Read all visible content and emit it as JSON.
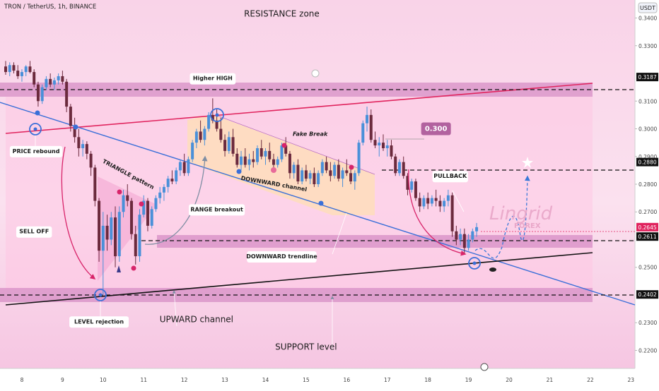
{
  "header": {
    "symbol_line": "TRON / TetherUS, 1h, BINANCE",
    "currency": "USDT"
  },
  "chart_data": {
    "type": "candlestick",
    "title": "TRON / TetherUS, 1h, BINANCE",
    "y_unit": "USDT",
    "ylim": [
      0.2135,
      0.3465
    ],
    "y_ticks": [
      "0.3400",
      "0.3300",
      "0.3100",
      "0.3000",
      "0.2900",
      "0.2800",
      "0.2700",
      "0.2500",
      "0.2300",
      "0.2200"
    ],
    "x_ticks": [
      "8",
      "9",
      "10",
      "11",
      "12",
      "13",
      "14",
      "15",
      "16",
      "17",
      "18",
      "19",
      "20",
      "21",
      "22",
      "23"
    ],
    "x_range": [
      7.6,
      23.1
    ],
    "price_tags": [
      {
        "value": 0.3187,
        "label": "0.3187",
        "style": "dark"
      },
      {
        "value": 0.288,
        "label": "0.2880",
        "style": "dark"
      },
      {
        "value": 0.2645,
        "label": "0.2645",
        "style": "pink"
      },
      {
        "value": 0.2611,
        "label": "0.2611",
        "style": "dark"
      },
      {
        "value": 0.2402,
        "label": "0.2402",
        "style": "dark"
      }
    ],
    "candles": [
      [
        7.6,
        0.3225,
        0.3245,
        0.3195,
        0.3205
      ],
      [
        7.7,
        0.3205,
        0.324,
        0.319,
        0.323
      ],
      [
        7.8,
        0.323,
        0.324,
        0.32,
        0.321
      ],
      [
        7.9,
        0.321,
        0.323,
        0.318,
        0.319
      ],
      [
        8.0,
        0.319,
        0.3215,
        0.317,
        0.3205
      ],
      [
        8.1,
        0.3205,
        0.323,
        0.319,
        0.3225
      ],
      [
        8.2,
        0.3225,
        0.3245,
        0.32,
        0.3205
      ],
      [
        8.3,
        0.3205,
        0.3215,
        0.315,
        0.316
      ],
      [
        8.4,
        0.316,
        0.317,
        0.308,
        0.31
      ],
      [
        8.5,
        0.31,
        0.316,
        0.309,
        0.315
      ],
      [
        8.6,
        0.315,
        0.319,
        0.314,
        0.318
      ],
      [
        8.7,
        0.318,
        0.32,
        0.315,
        0.316
      ],
      [
        8.8,
        0.316,
        0.3185,
        0.314,
        0.3175
      ],
      [
        8.9,
        0.3175,
        0.32,
        0.316,
        0.319
      ],
      [
        9.0,
        0.319,
        0.321,
        0.316,
        0.317
      ],
      [
        9.1,
        0.317,
        0.318,
        0.306,
        0.308
      ],
      [
        9.2,
        0.308,
        0.309,
        0.299,
        0.301
      ],
      [
        9.3,
        0.301,
        0.304,
        0.295,
        0.297
      ],
      [
        9.4,
        0.297,
        0.3,
        0.29,
        0.293
      ],
      [
        9.5,
        0.293,
        0.296,
        0.29,
        0.2945
      ],
      [
        9.6,
        0.2945,
        0.2955,
        0.289,
        0.291
      ],
      [
        9.7,
        0.291,
        0.292,
        0.283,
        0.286
      ],
      [
        9.8,
        0.286,
        0.287,
        0.272,
        0.274
      ],
      [
        9.9,
        0.274,
        0.275,
        0.252,
        0.256
      ],
      [
        10.0,
        0.256,
        0.27,
        0.24,
        0.265
      ],
      [
        10.1,
        0.265,
        0.269,
        0.256,
        0.26
      ],
      [
        10.2,
        0.26,
        0.27,
        0.258,
        0.268
      ],
      [
        10.3,
        0.268,
        0.272,
        0.25,
        0.254
      ],
      [
        10.4,
        0.254,
        0.272,
        0.252,
        0.27
      ],
      [
        10.5,
        0.27,
        0.278,
        0.268,
        0.276
      ],
      [
        10.6,
        0.276,
        0.28,
        0.272,
        0.274
      ],
      [
        10.7,
        0.274,
        0.275,
        0.26,
        0.262
      ],
      [
        10.8,
        0.262,
        0.265,
        0.251,
        0.254
      ],
      [
        10.9,
        0.254,
        0.271,
        0.252,
        0.269
      ],
      [
        11.0,
        0.269,
        0.276,
        0.268,
        0.274
      ],
      [
        11.1,
        0.274,
        0.275,
        0.263,
        0.265
      ],
      [
        11.2,
        0.265,
        0.272,
        0.264,
        0.271
      ],
      [
        11.3,
        0.271,
        0.276,
        0.27,
        0.275
      ],
      [
        11.4,
        0.275,
        0.279,
        0.273,
        0.277
      ],
      [
        11.5,
        0.277,
        0.28,
        0.274,
        0.279
      ],
      [
        11.6,
        0.279,
        0.283,
        0.277,
        0.282
      ],
      [
        11.7,
        0.282,
        0.285,
        0.28,
        0.281
      ],
      [
        11.8,
        0.281,
        0.286,
        0.28,
        0.285
      ],
      [
        11.9,
        0.285,
        0.289,
        0.283,
        0.288
      ],
      [
        12.0,
        0.288,
        0.291,
        0.283,
        0.284
      ],
      [
        12.1,
        0.284,
        0.29,
        0.283,
        0.289
      ],
      [
        12.2,
        0.289,
        0.296,
        0.288,
        0.295
      ],
      [
        12.3,
        0.295,
        0.3,
        0.293,
        0.299
      ],
      [
        12.4,
        0.299,
        0.303,
        0.295,
        0.296
      ],
      [
        12.5,
        0.296,
        0.301,
        0.294,
        0.3
      ],
      [
        12.6,
        0.3,
        0.306,
        0.299,
        0.305
      ],
      [
        12.7,
        0.305,
        0.311,
        0.302,
        0.303
      ],
      [
        12.8,
        0.303,
        0.307,
        0.299,
        0.3
      ],
      [
        12.9,
        0.3,
        0.304,
        0.295,
        0.296
      ],
      [
        13.0,
        0.296,
        0.298,
        0.29,
        0.292
      ],
      [
        13.1,
        0.292,
        0.299,
        0.291,
        0.297
      ],
      [
        13.2,
        0.297,
        0.3,
        0.29,
        0.291
      ],
      [
        13.3,
        0.291,
        0.293,
        0.286,
        0.287
      ],
      [
        13.4,
        0.287,
        0.292,
        0.285,
        0.29
      ],
      [
        13.5,
        0.29,
        0.293,
        0.286,
        0.287
      ],
      [
        13.6,
        0.287,
        0.291,
        0.285,
        0.289
      ],
      [
        13.7,
        0.289,
        0.292,
        0.286,
        0.288
      ],
      [
        13.8,
        0.288,
        0.294,
        0.287,
        0.293
      ],
      [
        13.9,
        0.293,
        0.296,
        0.289,
        0.29
      ],
      [
        14.0,
        0.29,
        0.293,
        0.287,
        0.292
      ],
      [
        14.1,
        0.292,
        0.295,
        0.288,
        0.289
      ],
      [
        14.2,
        0.289,
        0.291,
        0.285,
        0.287
      ],
      [
        14.3,
        0.287,
        0.29,
        0.286,
        0.289
      ],
      [
        14.4,
        0.289,
        0.295,
        0.288,
        0.294
      ],
      [
        14.5,
        0.294,
        0.297,
        0.29,
        0.291
      ],
      [
        14.6,
        0.291,
        0.292,
        0.282,
        0.284
      ],
      [
        14.7,
        0.284,
        0.288,
        0.282,
        0.287
      ],
      [
        14.8,
        0.287,
        0.289,
        0.28,
        0.281
      ],
      [
        14.9,
        0.281,
        0.286,
        0.28,
        0.285
      ],
      [
        15.0,
        0.285,
        0.287,
        0.281,
        0.282
      ],
      [
        15.1,
        0.282,
        0.285,
        0.28,
        0.284
      ],
      [
        15.2,
        0.284,
        0.286,
        0.279,
        0.28
      ],
      [
        15.3,
        0.28,
        0.285,
        0.279,
        0.284
      ],
      [
        15.4,
        0.284,
        0.289,
        0.283,
        0.288
      ],
      [
        15.5,
        0.288,
        0.29,
        0.284,
        0.285
      ],
      [
        15.6,
        0.285,
        0.288,
        0.281,
        0.283
      ],
      [
        15.7,
        0.283,
        0.288,
        0.282,
        0.287
      ],
      [
        15.8,
        0.287,
        0.289,
        0.281,
        0.282
      ],
      [
        15.9,
        0.282,
        0.286,
        0.279,
        0.285
      ],
      [
        16.0,
        0.285,
        0.289,
        0.283,
        0.284
      ],
      [
        16.1,
        0.284,
        0.287,
        0.28,
        0.281
      ],
      [
        16.2,
        0.281,
        0.285,
        0.278,
        0.284
      ],
      [
        16.3,
        0.284,
        0.296,
        0.283,
        0.295
      ],
      [
        16.4,
        0.295,
        0.303,
        0.294,
        0.302
      ],
      [
        16.5,
        0.302,
        0.308,
        0.299,
        0.305
      ],
      [
        16.6,
        0.305,
        0.307,
        0.295,
        0.296
      ],
      [
        16.7,
        0.296,
        0.299,
        0.293,
        0.294
      ],
      [
        16.8,
        0.294,
        0.297,
        0.29,
        0.295
      ],
      [
        16.9,
        0.295,
        0.298,
        0.292,
        0.293
      ],
      [
        17.0,
        0.293,
        0.296,
        0.29,
        0.294
      ],
      [
        17.1,
        0.294,
        0.296,
        0.289,
        0.29
      ],
      [
        17.2,
        0.29,
        0.291,
        0.283,
        0.284
      ],
      [
        17.3,
        0.284,
        0.289,
        0.283,
        0.288
      ],
      [
        17.4,
        0.288,
        0.29,
        0.282,
        0.283
      ],
      [
        17.5,
        0.283,
        0.284,
        0.276,
        0.278
      ],
      [
        17.6,
        0.278,
        0.282,
        0.277,
        0.281
      ],
      [
        17.7,
        0.281,
        0.282,
        0.274,
        0.275
      ],
      [
        17.8,
        0.275,
        0.277,
        0.27,
        0.272
      ],
      [
        17.9,
        0.272,
        0.276,
        0.271,
        0.275
      ],
      [
        18.0,
        0.275,
        0.277,
        0.271,
        0.273
      ],
      [
        18.1,
        0.273,
        0.276,
        0.272,
        0.275
      ],
      [
        18.2,
        0.275,
        0.278,
        0.272,
        0.274
      ],
      [
        18.3,
        0.274,
        0.276,
        0.27,
        0.272
      ],
      [
        18.4,
        0.272,
        0.275,
        0.27,
        0.274
      ],
      [
        18.5,
        0.274,
        0.278,
        0.272,
        0.276
      ],
      [
        18.6,
        0.276,
        0.277,
        0.261,
        0.263
      ],
      [
        18.7,
        0.263,
        0.265,
        0.258,
        0.26
      ],
      [
        18.8,
        0.26,
        0.264,
        0.258,
        0.262
      ],
      [
        18.9,
        0.262,
        0.264,
        0.255,
        0.257
      ],
      [
        19.0,
        0.257,
        0.262,
        0.256,
        0.26
      ],
      [
        19.1,
        0.26,
        0.264,
        0.259,
        0.263
      ],
      [
        19.2,
        0.263,
        0.266,
        0.261,
        0.2645
      ]
    ],
    "annotations": [
      {
        "text": "RESISTANCE zone",
        "x": 14.4,
        "y": 0.3405
      },
      {
        "text": "SUPPORT level",
        "x": 15.0,
        "y": 0.2202
      },
      {
        "text": "UPWARD channel",
        "x": 12.3,
        "y": 0.2302
      },
      {
        "text": "Higher HIGH",
        "x": 12.7,
        "y": 0.3183,
        "boxed": true
      },
      {
        "text": "PRICE rebound",
        "x": 8.35,
        "y": 0.292,
        "boxed": true
      },
      {
        "text": "LEVEL rejection",
        "x": 9.9,
        "y": 0.2305,
        "boxed": true
      },
      {
        "text": "SELL OFF",
        "x": 8.3,
        "y": 0.263,
        "boxed": true
      },
      {
        "text": "TRIANGLE pattern",
        "x": 10.6,
        "y": 0.283,
        "angle": 28
      },
      {
        "text": "RANGE breakout",
        "x": 12.8,
        "y": 0.271,
        "boxed": true
      },
      {
        "text": "DOWNWARD channel",
        "x": 14.2,
        "y": 0.2795,
        "angle": 10
      },
      {
        "text": "Fake Break",
        "x": 15.1,
        "y": 0.2975
      },
      {
        "text": "DOWNWARD trendline",
        "x": 14.4,
        "y": 0.254,
        "boxed": true
      },
      {
        "text": "PULLBACK",
        "x": 18.55,
        "y": 0.283,
        "boxed": true
      },
      {
        "text": "0.300",
        "x": 18.2,
        "y": 0.3,
        "boxed": true
      }
    ],
    "watermark": {
      "name": "Lingrid",
      "sub": "FOREX"
    }
  }
}
